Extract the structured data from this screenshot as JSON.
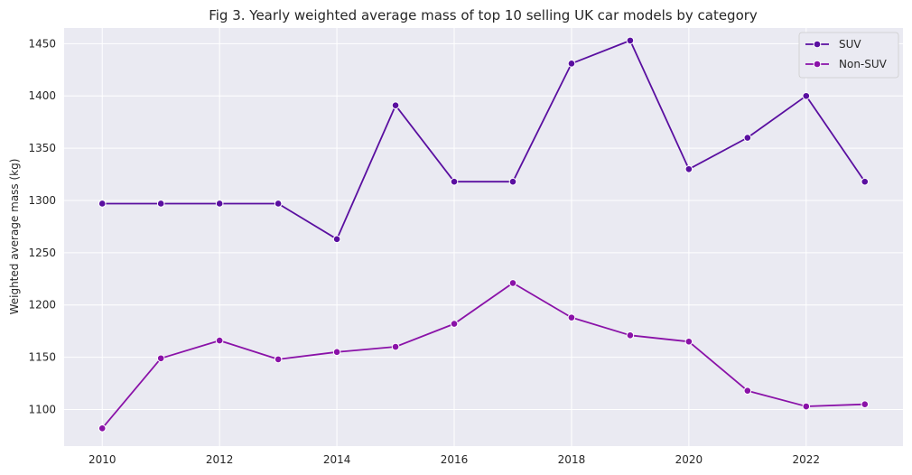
{
  "chart_data": {
    "type": "line",
    "title": "Fig 3. Yearly weighted average mass of top 10 selling UK car models by category",
    "xlabel": "",
    "ylabel": "Weighted average mass (kg)",
    "x": [
      2010,
      2011,
      2012,
      2013,
      2014,
      2015,
      2016,
      2017,
      2018,
      2019,
      2020,
      2021,
      2022,
      2023
    ],
    "xticks": [
      2010,
      2012,
      2014,
      2016,
      2018,
      2020,
      2022
    ],
    "yticks": [
      1100,
      1150,
      1200,
      1250,
      1300,
      1350,
      1400,
      1450
    ],
    "xlim": [
      2009.35,
      2023.65
    ],
    "ylim": [
      1065,
      1465
    ],
    "grid": true,
    "legend_position": "top-right",
    "series": [
      {
        "name": "SUV",
        "color": "#5a0fa0",
        "values": [
          1297,
          1297,
          1297,
          1297,
          1263,
          1391,
          1318,
          1318,
          1431,
          1453,
          1330,
          1360,
          1400,
          1318
        ]
      },
      {
        "name": "Non-SUV",
        "color": "#8a12a8",
        "values": [
          1082,
          1149,
          1166,
          1148,
          1155,
          1160,
          1182,
          1221,
          1188,
          1171,
          1165,
          1118,
          1103,
          1105
        ]
      }
    ]
  }
}
